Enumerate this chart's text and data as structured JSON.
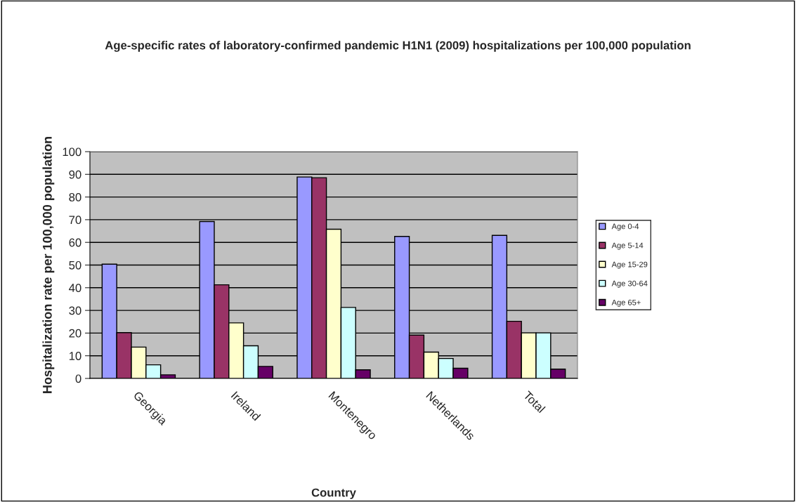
{
  "chart_data": {
    "type": "bar",
    "title": "Age-specific rates of laboratory-confirmed pandemic H1N1 (2009) hospitalizations per 100,000 population",
    "xlabel": "Country",
    "ylabel": "Hospitalization rate per 100,000 population",
    "categories": [
      "Georgia",
      "Ireland",
      "Montenegro",
      "Netherlands",
      "Total"
    ],
    "series": [
      {
        "name": "Age 0-4",
        "color": "#9999ff",
        "values": [
          50.4,
          69.2,
          88.8,
          62.6,
          63.1
        ]
      },
      {
        "name": "Age 5-14",
        "color": "#993366",
        "values": [
          20.2,
          41.3,
          88.5,
          19.1,
          25.2
        ]
      },
      {
        "name": "Age 15-29",
        "color": "#ffffcc",
        "values": [
          13.8,
          24.5,
          65.8,
          11.6,
          20.1
        ]
      },
      {
        "name": "Age 30-64",
        "color": "#ccffff",
        "values": [
          6.0,
          14.4,
          31.3,
          8.8,
          20.1
        ]
      },
      {
        "name": "Age 65+",
        "color": "#660066",
        "values": [
          1.6,
          5.3,
          3.8,
          4.5,
          4.1
        ]
      }
    ],
    "ylim": [
      0,
      100
    ],
    "yticks": [
      0,
      10,
      20,
      30,
      40,
      50,
      60,
      70,
      80,
      90,
      100
    ],
    "grid": "y",
    "legend": "right"
  }
}
